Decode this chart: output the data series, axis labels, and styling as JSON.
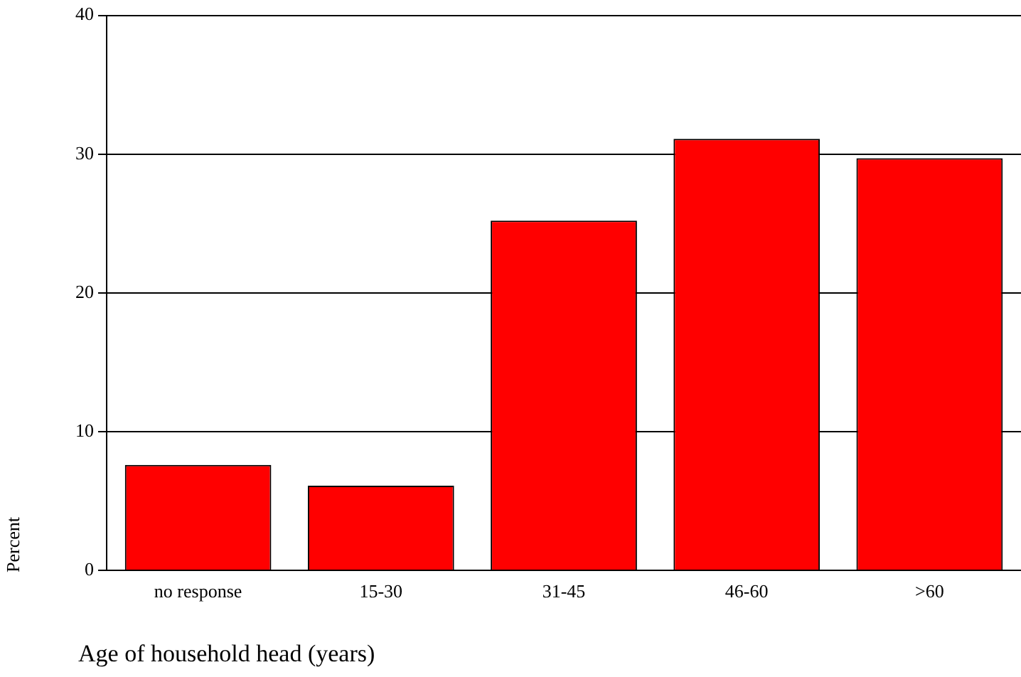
{
  "chart_data": {
    "type": "bar",
    "xlabel": "Age of household head (years)",
    "ylabel": "Percent",
    "categories": [
      "no response",
      "15-30",
      "31-45",
      "46-60",
      ">60"
    ],
    "values": [
      7.6,
      6.1,
      25.2,
      31.1,
      29.7
    ],
    "color": "#ff0000",
    "ylim": [
      0,
      40
    ],
    "yticks": [
      0,
      10,
      20,
      30,
      40
    ],
    "grid": "y"
  }
}
